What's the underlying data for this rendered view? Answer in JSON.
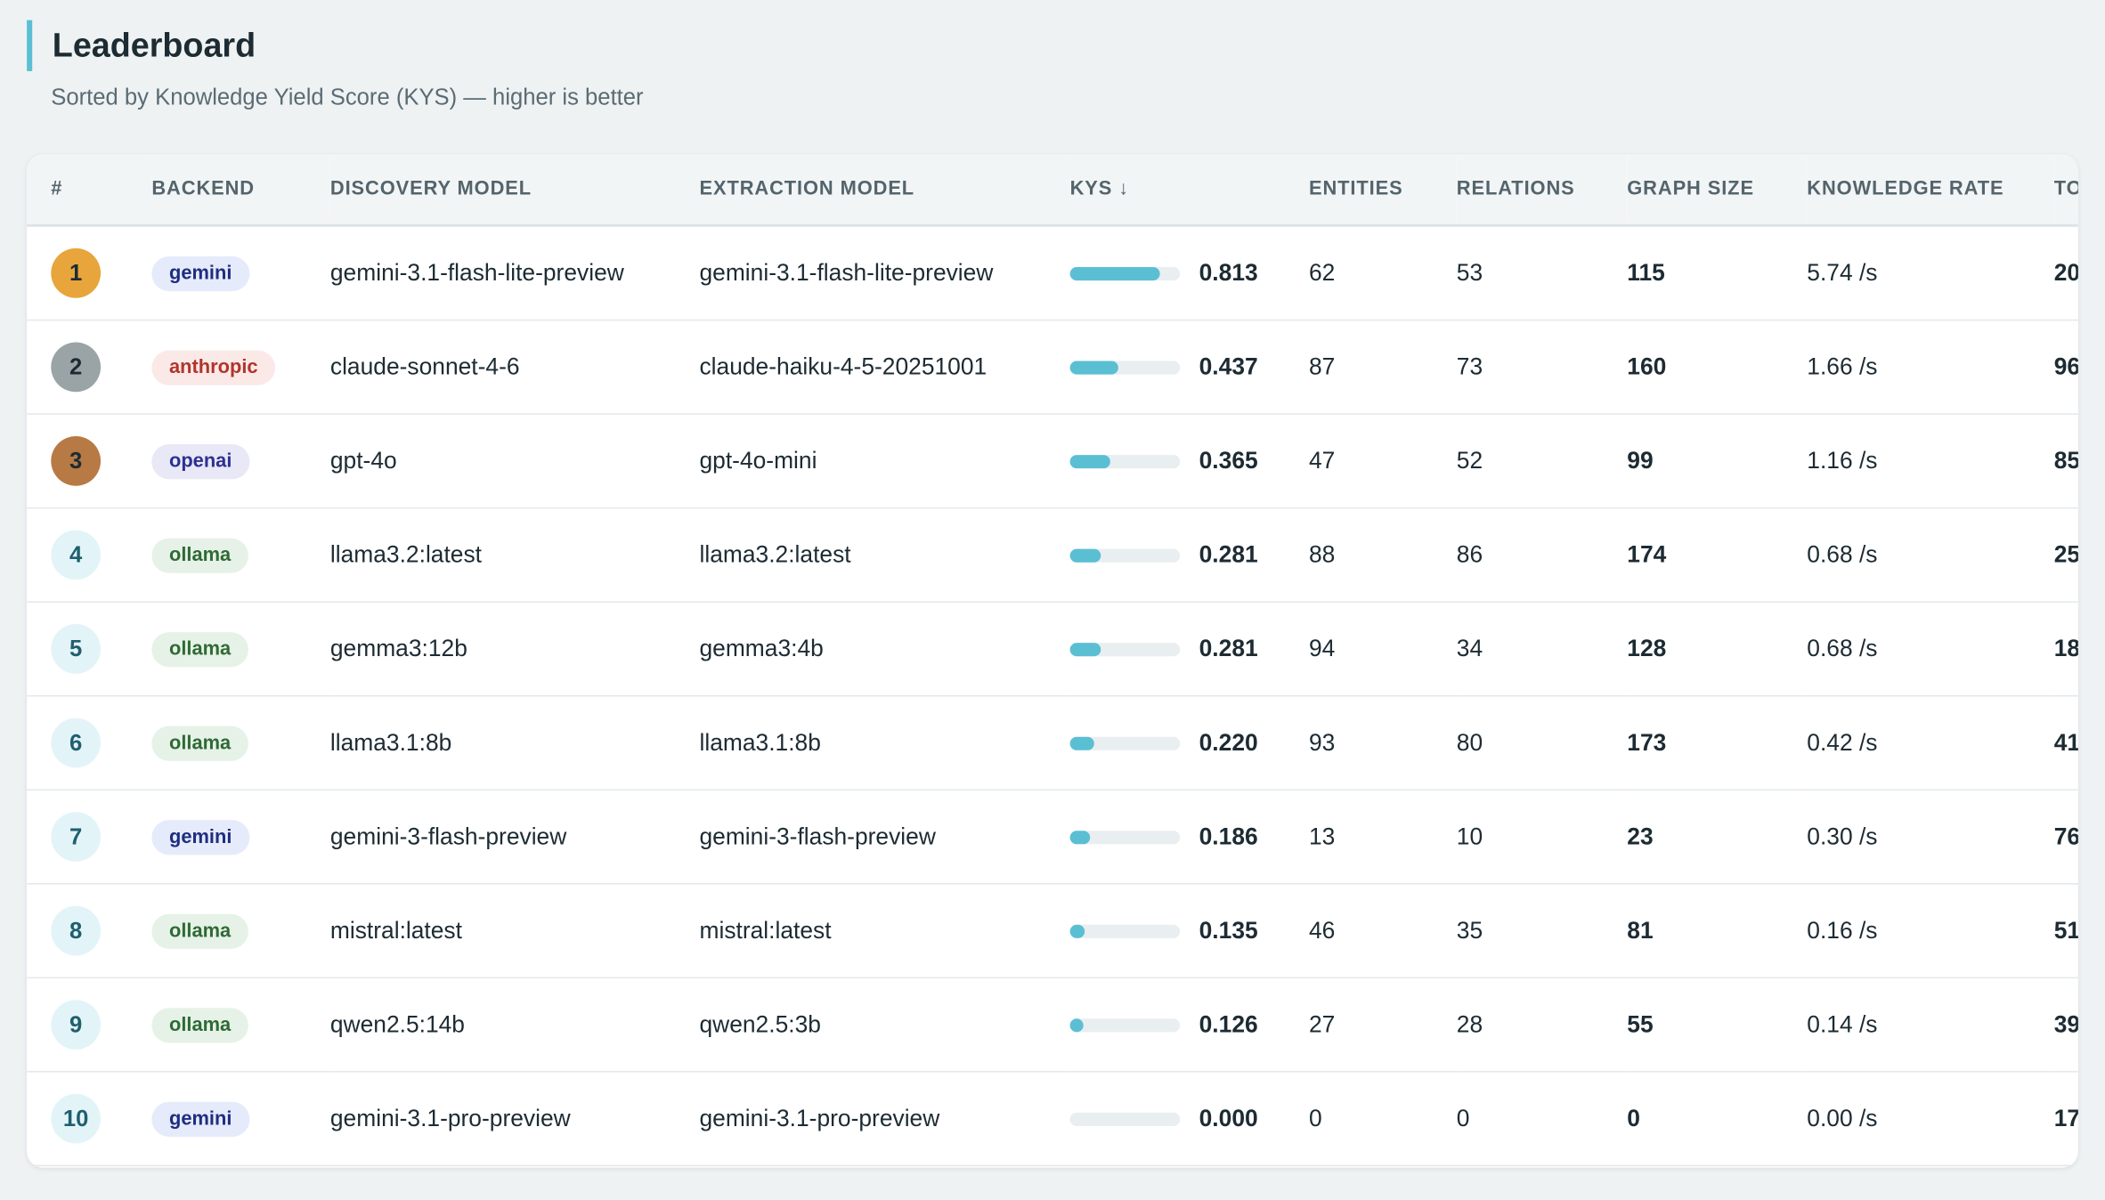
{
  "header": {
    "title": "Leaderboard",
    "subtitle": "Sorted by Knowledge Yield Score (KYS) — higher is better"
  },
  "table": {
    "columns": [
      "#",
      "BACKEND",
      "DISCOVERY MODEL",
      "EXTRACTION MODEL",
      "KYS ↓",
      "ENTITIES",
      "RELATIONS",
      "GRAPH SIZE",
      "KNOWLEDGE RATE",
      "TO"
    ],
    "rows": [
      [
        "1",
        "gemini",
        "gemini-3.1-flash-lite-preview",
        "gemini-3.1-flash-lite-preview",
        "0.813",
        "62",
        "53",
        "115",
        "5.74 /s",
        "20"
      ],
      [
        "2",
        "anthropic",
        "claude-sonnet-4-6",
        "claude-haiku-4-5-20251001",
        "0.437",
        "87",
        "73",
        "160",
        "1.66 /s",
        "96"
      ],
      [
        "3",
        "openai",
        "gpt-4o",
        "gpt-4o-mini",
        "0.365",
        "47",
        "52",
        "99",
        "1.16 /s",
        "85"
      ],
      [
        "4",
        "ollama",
        "llama3.2:latest",
        "llama3.2:latest",
        "0.281",
        "88",
        "86",
        "174",
        "0.68 /s",
        "25"
      ],
      [
        "5",
        "ollama",
        "gemma3:12b",
        "gemma3:4b",
        "0.281",
        "94",
        "34",
        "128",
        "0.68 /s",
        "18"
      ],
      [
        "6",
        "ollama",
        "llama3.1:8b",
        "llama3.1:8b",
        "0.220",
        "93",
        "80",
        "173",
        "0.42 /s",
        "41"
      ],
      [
        "7",
        "gemini",
        "gemini-3-flash-preview",
        "gemini-3-flash-preview",
        "0.186",
        "13",
        "10",
        "23",
        "0.30 /s",
        "76"
      ],
      [
        "8",
        "ollama",
        "mistral:latest",
        "mistral:latest",
        "0.135",
        "46",
        "35",
        "81",
        "0.16 /s",
        "51"
      ],
      [
        "9",
        "ollama",
        "qwen2.5:14b",
        "qwen2.5:3b",
        "0.126",
        "27",
        "28",
        "55",
        "0.14 /s",
        "39"
      ],
      [
        "10",
        "gemini",
        "gemini-3.1-pro-preview",
        "gemini-3.1-pro-preview",
        "0.000",
        "0",
        "0",
        "0",
        "0.00 /s",
        "17"
      ]
    ],
    "backend_colors": {
      "gemini": [
        "#e5ebfa",
        "#1f2d80"
      ],
      "anthropic": [
        "#fbe9e8",
        "#b0352b"
      ],
      "openai": [
        "#e8e8f7",
        "#2c3190"
      ],
      "ollama": [
        "#e6f2e7",
        "#2f6a35"
      ]
    },
    "rank_colors": [
      "#e8a53c",
      "#9aa4a7",
      "#b87a45"
    ]
  }
}
